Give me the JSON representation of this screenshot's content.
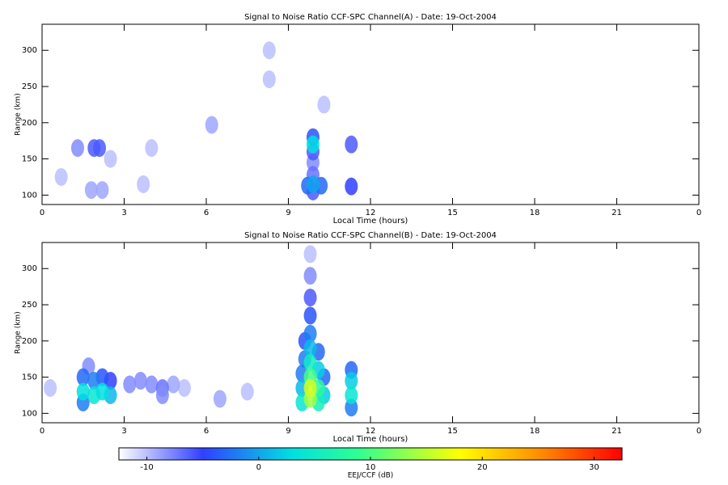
{
  "chart_data": [
    {
      "type": "heatmap",
      "title": "Signal to Noise Ratio CCF-SPC Channel(A) - Date: 19-Oct-2004",
      "x_label": "Local Time (hours)",
      "y_label": "Range (km)",
      "xlim": [
        0,
        24
      ],
      "ylim": [
        87,
        336
      ],
      "xticks": [
        0,
        3,
        6,
        9,
        12,
        15,
        18,
        21,
        {
          "value": 24,
          "label": "0"
        }
      ],
      "yticks": [
        100,
        150,
        200,
        250,
        300
      ],
      "x": [
        0.7,
        2.5,
        3.7,
        4,
        6.2,
        8.3,
        8.3,
        10.3,
        1.3,
        1.9,
        2.1,
        1.8,
        2.2,
        9.9,
        9.9,
        9.9,
        9.9,
        9.9,
        11.3,
        11.3,
        9.7,
        10.2,
        9.9,
        9.9
      ],
      "y": [
        125,
        150,
        115,
        165,
        197,
        300,
        260,
        225,
        165,
        165,
        165,
        107,
        107,
        145,
        128,
        160,
        105,
        180,
        170,
        112,
        113,
        113,
        170,
        115
      ],
      "values": [
        -10,
        -10,
        -10,
        -10,
        -9,
        -10,
        -10,
        -10,
        -8,
        -6,
        -6,
        -9,
        -9,
        -8,
        -7,
        -6,
        -6,
        -4,
        -6,
        -5,
        -3,
        -3,
        3,
        0
      ]
    },
    {
      "type": "heatmap",
      "title": "Signal to Noise Ratio CCF-SPC Channel(B) - Date: 19-Oct-2004",
      "x_label": "Local Time (hours)",
      "y_label": "Range (km)",
      "xlim": [
        0,
        24
      ],
      "ylim": [
        87,
        336
      ],
      "xticks": [
        0,
        3,
        6,
        9,
        12,
        15,
        18,
        21,
        {
          "value": 24,
          "label": "0"
        }
      ],
      "yticks": [
        100,
        150,
        200,
        250,
        300
      ],
      "x": [
        0.3,
        5.2,
        7.5,
        6.5,
        4.8,
        3.2,
        3.6,
        4.0,
        4.4,
        4.4,
        1.7,
        2.5,
        2.2,
        1.5,
        1.9,
        1.5,
        2.5,
        1.9,
        2.2,
        1.5,
        9.8,
        9.8,
        9.8,
        9.8,
        9.6,
        9.6,
        10.1,
        10.3,
        9.8,
        9.5,
        10.1,
        9.5,
        10.3,
        9.8,
        10.1,
        9.5,
        9.8,
        10.1,
        9.8,
        9.8,
        9.8,
        11.3,
        11.3,
        11.3,
        11.3
      ],
      "y": [
        135,
        135,
        130,
        120,
        140,
        140,
        145,
        140,
        135,
        125,
        165,
        145,
        150,
        150,
        145,
        115,
        125,
        125,
        130,
        130,
        320,
        290,
        260,
        235,
        200,
        175,
        185,
        150,
        210,
        155,
        160,
        135,
        125,
        190,
        115,
        115,
        170,
        135,
        150,
        120,
        135,
        160,
        108,
        145,
        125
      ],
      "values": [
        -10,
        -10,
        -10,
        -9,
        -9,
        -8,
        -8,
        -8,
        -7,
        -8,
        -8,
        -5,
        -4,
        -3,
        -2,
        -2,
        1,
        4,
        3,
        3,
        -10,
        -8,
        -6,
        -4,
        -4,
        -2,
        -3,
        -3,
        -2,
        -2,
        2,
        1,
        2,
        1,
        6,
        4,
        5,
        8,
        10,
        14,
        16,
        -3,
        -2,
        2,
        4
      ]
    }
  ],
  "colorbar": {
    "label": "EEJ/CCF (dB)",
    "lim": [
      -12.5,
      32.5
    ],
    "ticks": [
      -10,
      0,
      10,
      20,
      30
    ],
    "colorscale": [
      [
        -12.5,
        "#ffffff"
      ],
      [
        -5,
        "#3040ff"
      ],
      [
        3,
        "#00e0e0"
      ],
      [
        9,
        "#30ff90"
      ],
      [
        18,
        "#ffff00"
      ],
      [
        25,
        "#ff9000"
      ],
      [
        32.5,
        "#ff0000"
      ]
    ]
  }
}
